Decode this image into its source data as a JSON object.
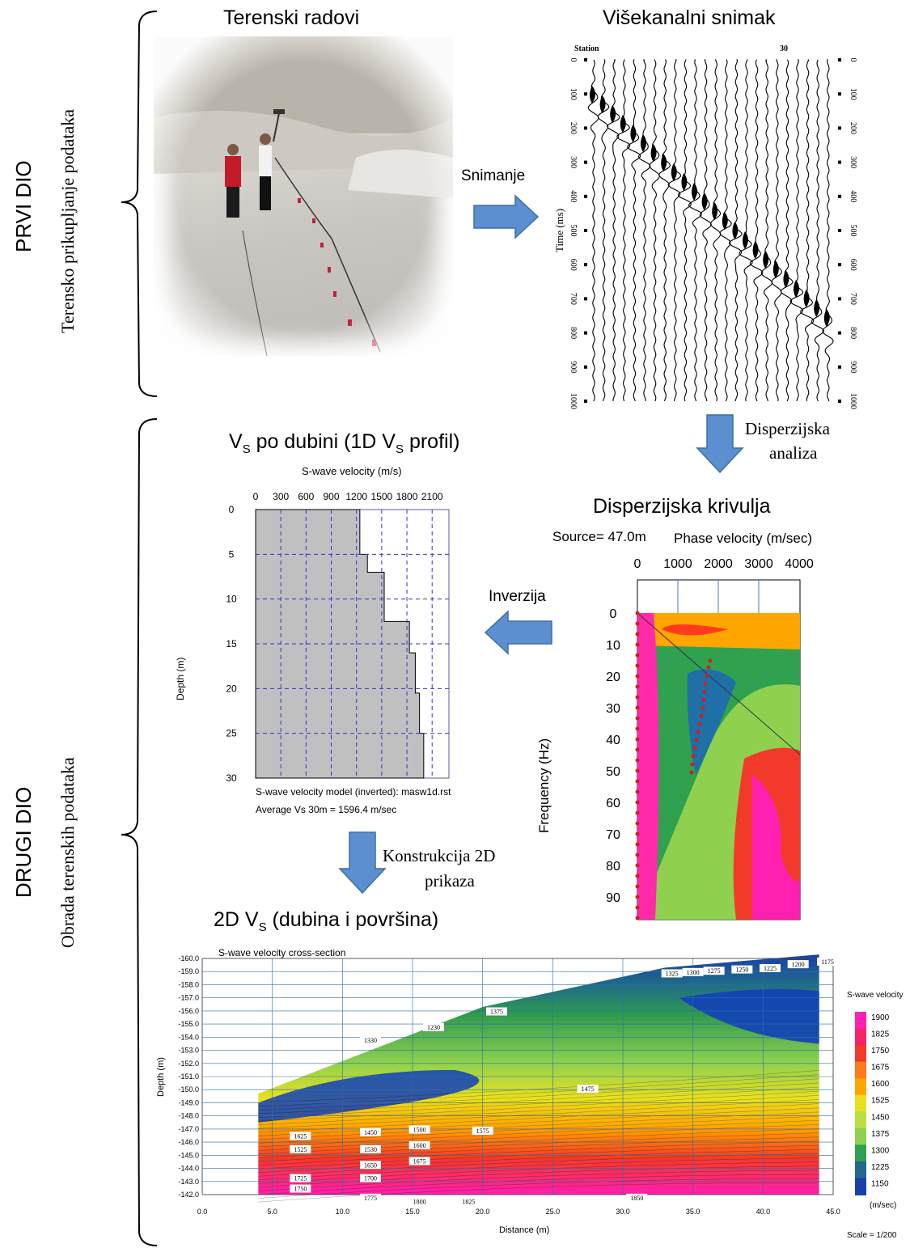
{
  "sections": {
    "first": {
      "main": "PRVI DIO",
      "sub": "Terensko prikupljanje podataka"
    },
    "second": {
      "main": "DRUGI DIO",
      "sub": "Obrada terenskih podataka"
    }
  },
  "titles": {
    "field_work": "Terenski radovi",
    "multichannel": "Višekanalni snimak",
    "vs_depth_prefix": "V",
    "vs_depth_sub": "S",
    "vs_depth_mid": " po dubini (1D V",
    "vs_depth_sub2": "S",
    "vs_depth_end": " profil)",
    "dispersion_curve": "Disperzijska krivulja",
    "twod_prefix": "2D V",
    "twod_sub": "S",
    "twod_end": " (dubina i površina)"
  },
  "arrows": {
    "recording": "Snimanje",
    "dispersion_analysis_1": "Disperzijska",
    "dispersion_analysis_2": "analiza",
    "inversion": "Inverzija",
    "construction_1": "Konstrukcija 2D",
    "construction_2": "prikaza"
  },
  "colors": {
    "arrow": "#5b8fcf",
    "arrow_border": "#3d6fa8",
    "profile_fill": "#c0c0c0",
    "grid_dash": "#3333cc"
  },
  "seismogram": {
    "station_label": "Station",
    "station_number": "30",
    "time_axis_label": "Time (ms)",
    "time_ticks": [
      "0",
      "100",
      "200",
      "300",
      "400",
      "500",
      "600",
      "700",
      "800",
      "900",
      "1000"
    ]
  },
  "profile_1d": {
    "top_label": "S-wave velocity (m/s)",
    "x_ticks": [
      "0",
      "300",
      "600",
      "900",
      "1200",
      "1500",
      "1800",
      "2100"
    ],
    "y_ticks": [
      "0",
      "5",
      "10",
      "15",
      "20",
      "25",
      "30"
    ],
    "y_label": "Depth (m)",
    "caption_1": "S-wave velocity model (inverted): masw1d.rst",
    "caption_2": "Average Vs 30m = 1596.4 m/sec"
  },
  "dispersion": {
    "source": "Source= 47.0m",
    "phase_velocity_label": "Phase velocity (m/sec)",
    "x_ticks": [
      "0",
      "1000",
      "2000",
      "3000",
      "4000"
    ],
    "y_ticks": [
      "0",
      "10",
      "20",
      "30",
      "40",
      "50",
      "60",
      "70",
      "80",
      "90"
    ],
    "y_label": "Frequency (Hz)"
  },
  "cross_section": {
    "title": "S-wave velocity cross-section",
    "y_ticks": [
      "-160.0",
      "-159.0",
      "-158.0",
      "-157.0",
      "-156.0",
      "-155.0",
      "-154.0",
      "-153.0",
      "-152.0",
      "-151.0",
      "-150.0",
      "-149.0",
      "-148.0",
      "-147.0",
      "-146.0",
      "-145.0",
      "-144.0",
      "-143.0",
      "-142.0"
    ],
    "y_label": "Depth (m)",
    "x_ticks": [
      "0.0",
      "5.0",
      "10.0",
      "15.0",
      "20.0",
      "25.0",
      "30.0",
      "35.0",
      "40.0",
      "45.0"
    ],
    "x_label": "Distance (m)",
    "legend_title": "S-wave velocity",
    "legend_values": [
      "1900",
      "1825",
      "1750",
      "1675",
      "1600",
      "1525",
      "1450",
      "1375",
      "1300",
      "1225",
      "1150"
    ],
    "legend_unit": "(m/sec)",
    "scale": "Scale = 1/200",
    "contour_labels": [
      "1325",
      "1300",
      "1275",
      "1250",
      "1225",
      "1200",
      "1175",
      "1230",
      "1375",
      "1330",
      "1475",
      "1625",
      "1450",
      "1500",
      "1575",
      "1525",
      "1530",
      "1600",
      "1650",
      "1675",
      "1725",
      "1700",
      "1750",
      "1775",
      "1800",
      "1825",
      "1850"
    ]
  }
}
